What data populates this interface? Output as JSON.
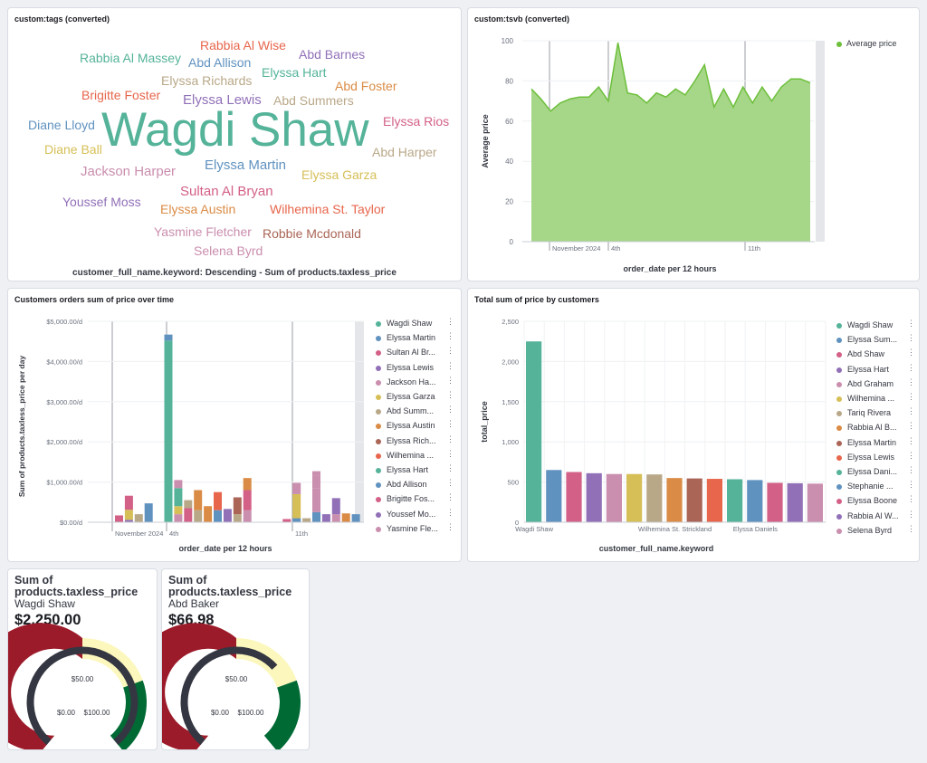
{
  "tags_panel": {
    "title": "custom:tags (converted)",
    "caption": "customer_full_name.keyword: Descending - Sum of products.taxless_price",
    "words": [
      {
        "text": "Rabbia Al Wise",
        "color": "#e7664c"
      },
      {
        "text": "Abd Barnes",
        "color": "#9170b8"
      },
      {
        "text": "Rabbia Al Massey",
        "color": "#54b399"
      },
      {
        "text": "Abd Allison",
        "color": "#6092c0"
      },
      {
        "text": "Elyssa Hart",
        "color": "#54b399"
      },
      {
        "text": "Elyssa Richards",
        "color": "#b9a888"
      },
      {
        "text": "Abd Foster",
        "color": "#da8b45"
      },
      {
        "text": "Brigitte Foster",
        "color": "#e7664c"
      },
      {
        "text": "Elyssa Lewis",
        "color": "#9170b8"
      },
      {
        "text": "Abd Summers",
        "color": "#b9a888"
      },
      {
        "text": "Diane Lloyd",
        "color": "#6092c0"
      },
      {
        "text": "Wagdi Shaw",
        "color": "#54b399"
      },
      {
        "text": "Elyssa Rios",
        "color": "#d36086"
      },
      {
        "text": "Diane Ball",
        "color": "#d6bf57"
      },
      {
        "text": "Abd Harper",
        "color": "#b9a888"
      },
      {
        "text": "Jackson Harper",
        "color": "#ca8eae"
      },
      {
        "text": "Elyssa Martin",
        "color": "#6092c0"
      },
      {
        "text": "Elyssa Garza",
        "color": "#d6bf57"
      },
      {
        "text": "Sultan Al Bryan",
        "color": "#d36086"
      },
      {
        "text": "Youssef Moss",
        "color": "#9170b8"
      },
      {
        "text": "Elyssa Austin",
        "color": "#da8b45"
      },
      {
        "text": "Wilhemina St. Taylor",
        "color": "#e7664c"
      },
      {
        "text": "Yasmine Fletcher",
        "color": "#ca8eae"
      },
      {
        "text": "Robbie Mcdonald",
        "color": "#aa6556"
      },
      {
        "text": "Selena Byrd",
        "color": "#ca8eae"
      }
    ]
  },
  "tsvb_panel": {
    "title": "custom:tsvb (converted)",
    "legend": "Average price",
    "color": "#6dbf3b",
    "chart_data": {
      "type": "area",
      "ylabel": "Average price",
      "xlabel": "order_date per 12 hours",
      "ylim": [
        0,
        100
      ],
      "yticks": [
        "100",
        "80",
        "60",
        "40",
        "20",
        "0"
      ],
      "xtick_labels": [
        "November 2024",
        "4th",
        "11th"
      ],
      "values": [
        76,
        71,
        65,
        69,
        71,
        72,
        72,
        77,
        70,
        99,
        74,
        73,
        69,
        74,
        72,
        76,
        73,
        80,
        88,
        67,
        76,
        67,
        77,
        69,
        77,
        70,
        77,
        81,
        81,
        79
      ]
    }
  },
  "orders_panel": {
    "title": "Customers orders sum of price over time",
    "chart_data": {
      "type": "bar",
      "ylabel": "Sum of products.taxless_price per day",
      "xlabel": "order_date per 12 hours",
      "ylim": [
        0,
        5000
      ],
      "yticks": [
        "$5,000.00/d",
        "$4,000.00/d",
        "$3,000.00/d",
        "$2,000.00/d",
        "$1,000.00/d",
        "$0.00/d"
      ],
      "xtick_labels": [
        "November 2024",
        "4th",
        "11th"
      ],
      "series": [
        {
          "name": "Wagdi Shaw",
          "color": "#54b399"
        },
        {
          "name": "Elyssa Martin",
          "color": "#6092c0"
        },
        {
          "name": "Sultan Al Br...",
          "color": "#d36086"
        },
        {
          "name": "Elyssa Lewis",
          "color": "#9170b8"
        },
        {
          "name": "Jackson Ha...",
          "color": "#ca8eae"
        },
        {
          "name": "Elyssa Garza",
          "color": "#d6bf57"
        },
        {
          "name": "Abd Summ...",
          "color": "#b9a888"
        },
        {
          "name": "Elyssa Austin",
          "color": "#da8b45"
        },
        {
          "name": "Elyssa Rich...",
          "color": "#aa6556"
        },
        {
          "name": "Wilhemina ...",
          "color": "#e7664c"
        },
        {
          "name": "Elyssa Hart",
          "color": "#54b399"
        },
        {
          "name": "Abd Allison",
          "color": "#6092c0"
        },
        {
          "name": "Brigitte Fos...",
          "color": "#d36086"
        },
        {
          "name": "Youssef Mo...",
          "color": "#9170b8"
        },
        {
          "name": "Yasmine Fle...",
          "color": "#ca8eae"
        }
      ],
      "bars": [
        {
          "slot": 0,
          "stack": [
            [
              170,
              "#d36086"
            ]
          ]
        },
        {
          "slot": 1,
          "stack": [
            [
              60,
              "#9170b8"
            ],
            [
              250,
              "#d6bf57"
            ],
            [
              350,
              "#d36086"
            ]
          ]
        },
        {
          "slot": 2,
          "stack": [
            [
              200,
              "#b9a888"
            ]
          ]
        },
        {
          "slot": 3,
          "stack": [
            [
              470,
              "#6092c0"
            ]
          ]
        },
        {
          "slot": 5,
          "stack": [
            [
              4520,
              "#54b399"
            ],
            [
              150,
              "#6092c0"
            ]
          ]
        },
        {
          "slot": 6,
          "stack": [
            [
              200,
              "#ca8eae"
            ],
            [
              200,
              "#d6bf57"
            ],
            [
              450,
              "#54b399"
            ],
            [
              200,
              "#ca8eae"
            ]
          ]
        },
        {
          "slot": 7,
          "stack": [
            [
              350,
              "#d36086"
            ],
            [
              200,
              "#b9a888"
            ]
          ]
        },
        {
          "slot": 8,
          "stack": [
            [
              300,
              "#b9a888"
            ],
            [
              500,
              "#da8b45"
            ]
          ]
        },
        {
          "slot": 9,
          "stack": [
            [
              400,
              "#da8b45"
            ]
          ]
        },
        {
          "slot": 10,
          "stack": [
            [
              300,
              "#6092c0"
            ],
            [
              450,
              "#e7664c"
            ]
          ]
        },
        {
          "slot": 11,
          "stack": [
            [
              330,
              "#9170b8"
            ]
          ]
        },
        {
          "slot": 12,
          "stack": [
            [
              200,
              "#b9a888"
            ],
            [
              420,
              "#aa6556"
            ]
          ]
        },
        {
          "slot": 13,
          "stack": [
            [
              300,
              "#ca8eae"
            ],
            [
              500,
              "#d36086"
            ],
            [
              300,
              "#da8b45"
            ]
          ]
        },
        {
          "slot": 17,
          "stack": [
            [
              80,
              "#d36086"
            ]
          ]
        },
        {
          "slot": 18,
          "stack": [
            [
              100,
              "#6092c0"
            ],
            [
              600,
              "#d6bf57"
            ],
            [
              280,
              "#ca8eae"
            ]
          ]
        },
        {
          "slot": 19,
          "stack": [
            [
              100,
              "#b9a888"
            ]
          ]
        },
        {
          "slot": 20,
          "stack": [
            [
              250,
              "#6092c0"
            ],
            [
              600,
              "#ca8eae"
            ],
            [
              300,
              "#ca8eae"
            ],
            [
              120,
              "#ca8eae"
            ]
          ]
        },
        {
          "slot": 21,
          "stack": [
            [
              200,
              "#9170b8"
            ]
          ]
        },
        {
          "slot": 22,
          "stack": [
            [
              200,
              "#ca8eae"
            ],
            [
              400,
              "#9170b8"
            ]
          ]
        },
        {
          "slot": 23,
          "stack": [
            [
              220,
              "#da8b45"
            ]
          ]
        },
        {
          "slot": 24,
          "stack": [
            [
              200,
              "#6092c0"
            ]
          ]
        }
      ]
    }
  },
  "total_panel": {
    "title": "Total sum of price by customers",
    "chart_data": {
      "type": "bar",
      "ylabel": "total_price",
      "xlabel": "customer_full_name.keyword",
      "ylim": [
        0,
        2500
      ],
      "yticks": [
        "2,500",
        "2,000",
        "1,500",
        "1,000",
        "500",
        "0"
      ],
      "xtick_labels": [
        "Wagdi Shaw",
        "Wilhemina St. Strickland",
        "Elyssa Daniels"
      ],
      "values": [
        2250,
        650,
        625,
        610,
        600,
        600,
        595,
        550,
        545,
        540,
        535,
        525,
        490,
        485,
        480
      ],
      "colors": [
        "#54b399",
        "#6092c0",
        "#d36086",
        "#9170b8",
        "#ca8eae",
        "#d6bf57",
        "#b9a888",
        "#da8b45",
        "#aa6556",
        "#e7664c",
        "#54b399",
        "#6092c0",
        "#d36086",
        "#9170b8",
        "#ca8eae"
      ],
      "series": [
        {
          "name": "Wagdi Shaw",
          "color": "#54b399"
        },
        {
          "name": "Elyssa Sum...",
          "color": "#6092c0"
        },
        {
          "name": "Abd Shaw",
          "color": "#d36086"
        },
        {
          "name": "Elyssa Hart",
          "color": "#9170b8"
        },
        {
          "name": "Abd Graham",
          "color": "#ca8eae"
        },
        {
          "name": "Wilhemina ...",
          "color": "#d6bf57"
        },
        {
          "name": "Tariq Rivera",
          "color": "#b9a888"
        },
        {
          "name": "Rabbia Al B...",
          "color": "#da8b45"
        },
        {
          "name": "Elyssa Martin",
          "color": "#aa6556"
        },
        {
          "name": "Elyssa Lewis",
          "color": "#e7664c"
        },
        {
          "name": "Elyssa Dani...",
          "color": "#54b399"
        },
        {
          "name": "Stephanie ...",
          "color": "#6092c0"
        },
        {
          "name": "Elyssa Boone",
          "color": "#d36086"
        },
        {
          "name": "Rabbia Al W...",
          "color": "#9170b8"
        },
        {
          "name": "Selena Byrd",
          "color": "#ca8eae"
        }
      ]
    }
  },
  "gauges": [
    {
      "title": "Sum of products.taxless_price",
      "subtitle": "Wagdi Shaw",
      "value_label": "$2,250.00",
      "value": 2250,
      "labels": [
        "$50.00",
        "$0.00",
        "$100.00"
      ]
    },
    {
      "title": "Sum of products.taxless_price",
      "subtitle": "Abd Baker",
      "value_label": "$66.98",
      "value": 66.98,
      "labels": [
        "$50.00",
        "$0.00",
        "$100.00"
      ]
    }
  ]
}
